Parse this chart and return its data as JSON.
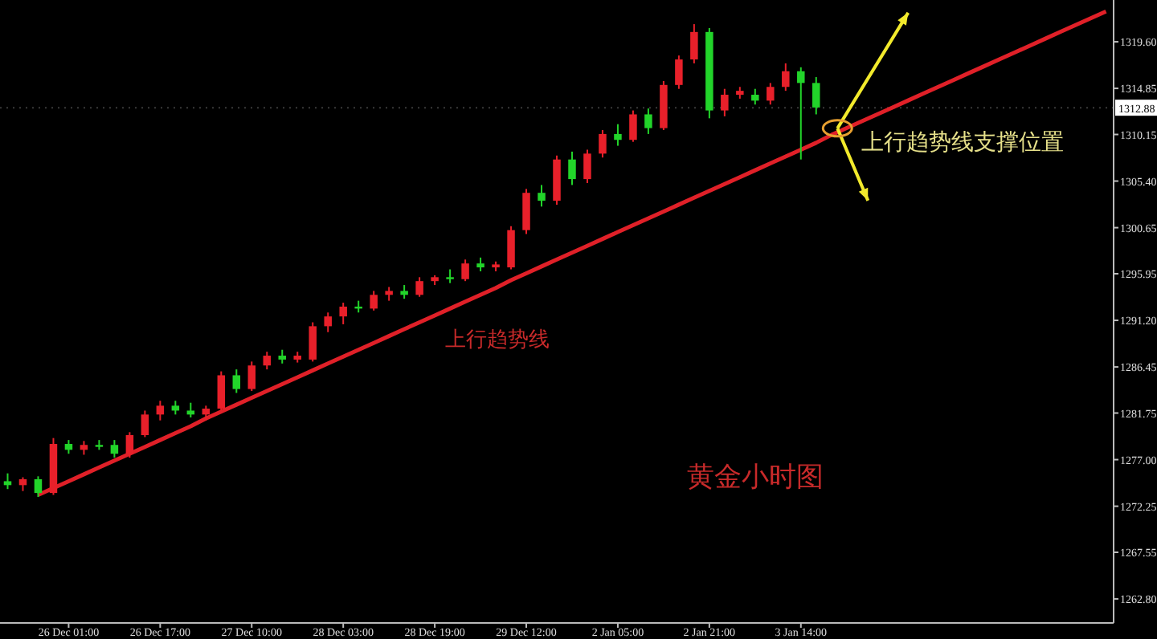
{
  "chart_data": {
    "type": "candlestick",
    "categories": [
      null,
      null,
      null,
      null,
      "26 Dec 01:00",
      null,
      null,
      null,
      null,
      null,
      "26 Dec 17:00",
      null,
      null,
      null,
      null,
      null,
      "27 Dec 10:00",
      null,
      null,
      null,
      null,
      null,
      "28 Dec 03:00",
      null,
      null,
      null,
      null,
      null,
      "28 Dec 19:00",
      null,
      null,
      null,
      null,
      null,
      "29 Dec 12:00",
      null,
      null,
      null,
      null,
      null,
      "2 Jan 05:00",
      null,
      null,
      null,
      null,
      null,
      "2 Jan 21:00",
      null,
      null,
      null,
      null,
      null,
      "3 Jan 14:00",
      null,
      null,
      null,
      null,
      null,
      null,
      null,
      null,
      null,
      null,
      null,
      null,
      null,
      null,
      null,
      null,
      null,
      null,
      null,
      null
    ],
    "ohlc": [
      [
        1274.8,
        1275.6,
        1274.0,
        1274.4
      ],
      [
        1274.4,
        1275.2,
        1273.8,
        1275.0
      ],
      [
        1275.0,
        1275.3,
        1273.2,
        1273.6
      ],
      [
        1273.6,
        1279.2,
        1273.4,
        1278.6
      ],
      [
        1278.6,
        1279.0,
        1277.6,
        1278.0
      ],
      [
        1278.0,
        1278.9,
        1277.5,
        1278.5
      ],
      [
        1278.5,
        1279.0,
        1278.0,
        1278.3
      ],
      [
        1278.5,
        1279.0,
        1277.2,
        1277.6
      ],
      [
        1277.6,
        1279.8,
        1277.2,
        1279.5
      ],
      [
        1279.5,
        1282.0,
        1279.3,
        1281.6
      ],
      [
        1281.6,
        1283.0,
        1281.0,
        1282.5
      ],
      [
        1282.5,
        1283.0,
        1281.6,
        1282.0
      ],
      [
        1282.0,
        1282.8,
        1281.3,
        1281.6
      ],
      [
        1281.6,
        1282.5,
        1281.0,
        1282.2
      ],
      [
        1282.2,
        1286.0,
        1282.0,
        1285.6
      ],
      [
        1285.6,
        1286.2,
        1283.8,
        1284.2
      ],
      [
        1284.2,
        1287.0,
        1284.0,
        1286.6
      ],
      [
        1286.6,
        1288.0,
        1286.2,
        1287.6
      ],
      [
        1287.6,
        1288.2,
        1286.8,
        1287.2
      ],
      [
        1287.2,
        1288.0,
        1286.9,
        1287.6
      ],
      [
        1287.2,
        1291.0,
        1287.0,
        1290.6
      ],
      [
        1290.6,
        1292.0,
        1290.0,
        1291.6
      ],
      [
        1291.6,
        1293.0,
        1290.8,
        1292.6
      ],
      [
        1292.6,
        1293.2,
        1292.0,
        1292.4
      ],
      [
        1292.4,
        1294.2,
        1292.2,
        1293.8
      ],
      [
        1293.8,
        1294.6,
        1293.2,
        1294.2
      ],
      [
        1294.2,
        1294.8,
        1293.4,
        1293.8
      ],
      [
        1293.8,
        1295.6,
        1293.6,
        1295.2
      ],
      [
        1295.2,
        1295.8,
        1294.8,
        1295.6
      ],
      [
        1295.6,
        1296.4,
        1295.0,
        1295.4
      ],
      [
        1295.4,
        1297.4,
        1295.2,
        1297.0
      ],
      [
        1297.0,
        1297.6,
        1296.2,
        1296.6
      ],
      [
        1296.6,
        1297.2,
        1296.2,
        1296.9
      ],
      [
        1296.6,
        1300.8,
        1296.4,
        1300.4
      ],
      [
        1300.4,
        1304.6,
        1300.0,
        1304.2
      ],
      [
        1304.2,
        1305.0,
        1302.8,
        1303.4
      ],
      [
        1303.4,
        1308.0,
        1303.0,
        1307.6
      ],
      [
        1307.6,
        1308.4,
        1305.0,
        1305.6
      ],
      [
        1305.6,
        1308.6,
        1305.2,
        1308.2
      ],
      [
        1308.2,
        1310.6,
        1307.8,
        1310.2
      ],
      [
        1310.2,
        1311.2,
        1309.0,
        1309.6
      ],
      [
        1309.6,
        1312.6,
        1309.4,
        1312.2
      ],
      [
        1312.2,
        1312.8,
        1310.2,
        1310.8
      ],
      [
        1310.8,
        1315.6,
        1310.6,
        1315.2
      ],
      [
        1315.2,
        1318.2,
        1314.8,
        1317.8
      ],
      [
        1317.8,
        1321.4,
        1317.4,
        1320.6
      ],
      [
        1320.6,
        1321.0,
        1311.8,
        1312.6
      ],
      [
        1312.6,
        1314.8,
        1312.0,
        1314.2
      ],
      [
        1314.2,
        1315.0,
        1313.8,
        1314.6
      ],
      [
        1314.2,
        1314.8,
        1313.2,
        1313.6
      ],
      [
        1313.6,
        1315.4,
        1313.2,
        1315.0
      ],
      [
        1315.0,
        1317.4,
        1314.6,
        1316.6
      ],
      [
        1316.6,
        1317.0,
        1307.6,
        1315.4
      ],
      [
        1315.4,
        1316.0,
        1312.2,
        1312.9
      ],
      null,
      null,
      null,
      null,
      null,
      null,
      null,
      null,
      null,
      null,
      null,
      null,
      null,
      null,
      null,
      null,
      null,
      null,
      null
    ],
    "colors": [
      "#22d42a",
      "#e8202a",
      "#22d42a",
      "#e8202a",
      "#22d42a",
      "#e8202a",
      "#22d42a",
      "#22d42a",
      "#e8202a",
      "#e8202a",
      "#e8202a",
      "#22d42a",
      "#22d42a",
      "#e8202a",
      "#e8202a",
      "#22d42a",
      "#e8202a",
      "#e8202a",
      "#22d42a",
      "#e8202a",
      "#e8202a",
      "#e8202a",
      "#e8202a",
      "#22d42a",
      "#e8202a",
      "#e8202a",
      "#22d42a",
      "#e8202a",
      "#e8202a",
      "#22d42a",
      "#e8202a",
      "#22d42a",
      "#e8202a",
      "#e8202a",
      "#e8202a",
      "#22d42a",
      "#e8202a",
      "#22d42a",
      "#e8202a",
      "#e8202a",
      "#22d42a",
      "#e8202a",
      "#22d42a",
      "#e8202a",
      "#e8202a",
      "#e8202a",
      "#22d42a",
      "#e8202a",
      "#e8202a",
      "#22d42a",
      "#e8202a",
      "#e8202a",
      "#22d42a",
      "#22d42a",
      null,
      null,
      null,
      null,
      null,
      null,
      null,
      null,
      null,
      null,
      null,
      null,
      null,
      null,
      null,
      null,
      null,
      null,
      null
    ],
    "series": [
      {
        "type": "line",
        "color": "#e02028",
        "values": [
          null,
          null,
          1273.4,
          1274.1,
          1274.8,
          1275.5,
          1276.2,
          1276.9,
          1277.6,
          1278.3,
          1279.0,
          1279.7,
          1280.4,
          1281.2,
          1281.9,
          1282.6,
          1283.3,
          1284.0,
          1284.7,
          1285.4,
          1286.1,
          1286.8,
          1287.5,
          1288.2,
          1288.9,
          1289.6,
          1290.3,
          1291.0,
          1291.7,
          1292.4,
          1293.1,
          1293.8,
          1294.5,
          1295.3,
          1296.0,
          1296.7,
          1297.4,
          1298.1,
          1298.8,
          1299.5,
          1300.2,
          1300.9,
          1301.6,
          1302.3,
          1303.0,
          1303.7,
          1304.4,
          1305.1,
          1305.8,
          1306.5,
          1307.2,
          1307.9,
          1308.6,
          1309.3,
          1310.1,
          1310.8,
          1311.5,
          1312.2,
          1312.9,
          1313.6,
          1314.3,
          1315.0,
          1315.7,
          1316.4,
          1317.1,
          1317.8,
          1318.5,
          1319.2,
          1319.9,
          1320.6,
          1321.3,
          1322.0,
          1322.7
        ]
      }
    ],
    "ylim": [
      1260.35,
      1323.86
    ],
    "yticks": [
      {
        "value": 1319.6,
        "label": "1319.60"
      },
      1314.85,
      1310.15,
      {
        "value": 1305.4,
        "label": "1305.40"
      },
      1300.65,
      1295.95,
      {
        "value": 1291.2,
        "label": "1291.20"
      },
      1286.45,
      1281.75,
      {
        "value": 1277,
        "label": "1277.00"
      },
      1272.25,
      1267.55,
      {
        "value": 1262.8,
        "label": "1262.80"
      }
    ],
    "ref_lines": [
      {
        "axis": "y",
        "value": 1312.88,
        "label": "1312.88",
        "color": "#3a3a3a",
        "line_style": "dotted"
      }
    ],
    "annotations": [
      "上行趋势线",
      "上行趋势线支撑位置",
      "黄金小时图"
    ],
    "grid": false
  }
}
